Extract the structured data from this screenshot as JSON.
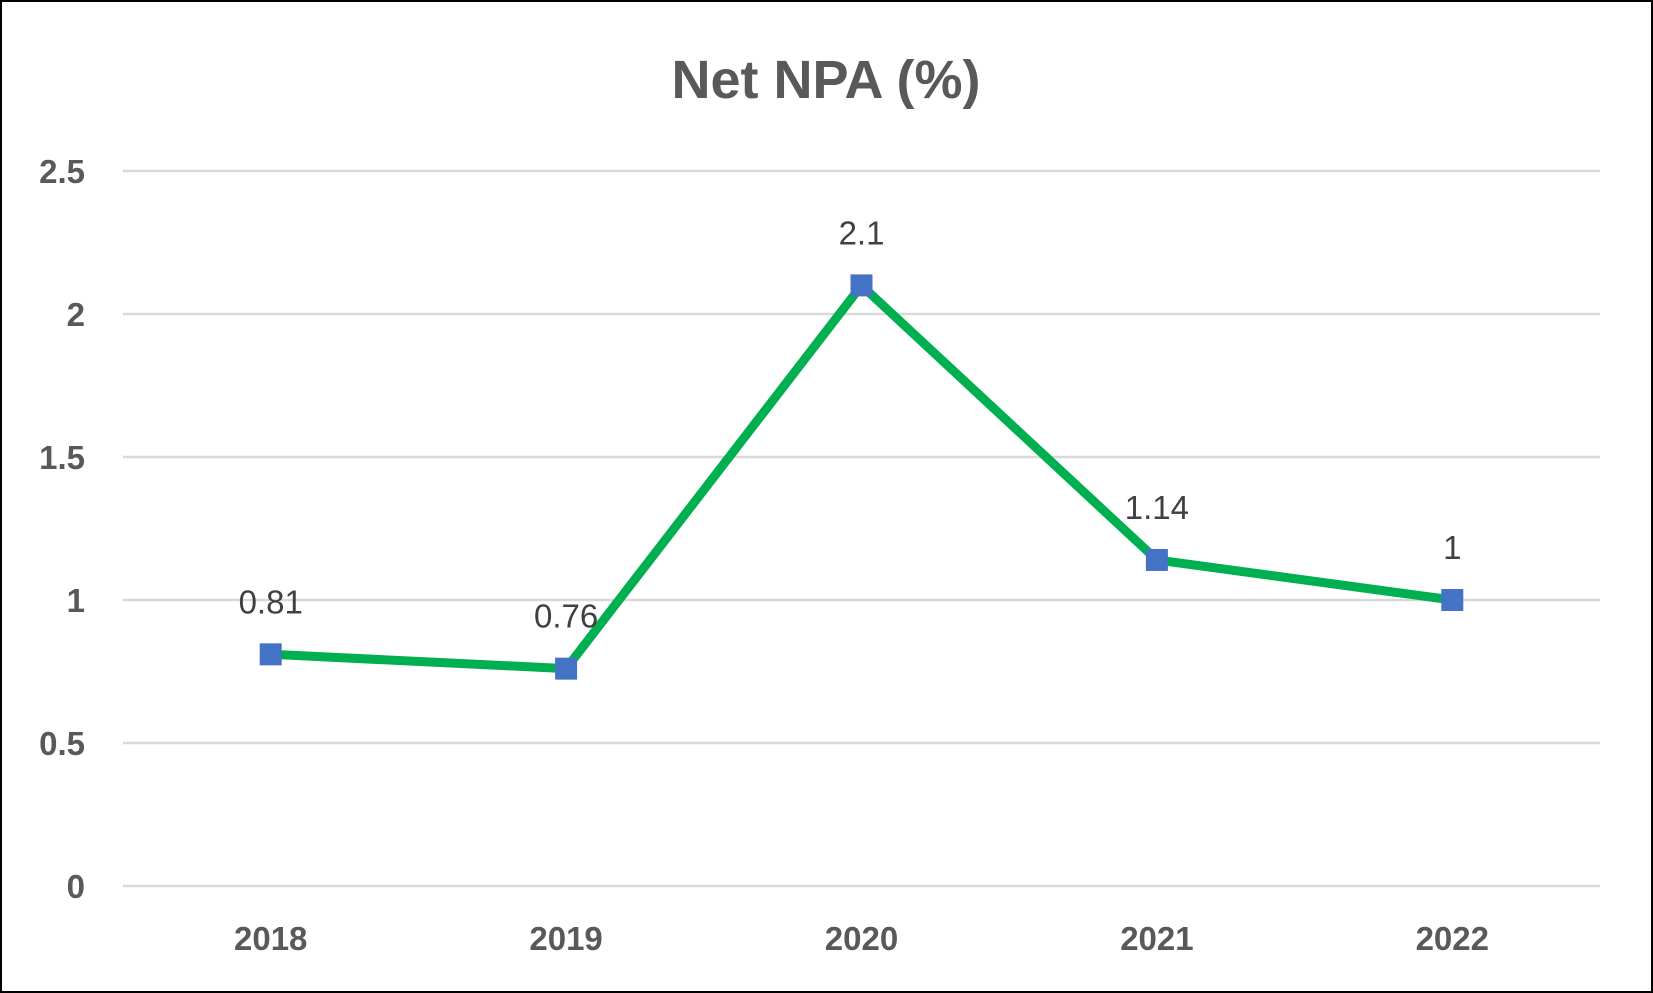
{
  "chart_data": {
    "type": "line",
    "title": "Net NPA (%)",
    "categories": [
      "2018",
      "2019",
      "2020",
      "2021",
      "2022"
    ],
    "series": [
      {
        "values": [
          0.81,
          0.76,
          2.1,
          1.14,
          1
        ],
        "data_labels": [
          "0.81",
          "0.76",
          "2.1",
          "1.14",
          "1"
        ]
      }
    ],
    "y_ticks": [
      "0",
      "0.5",
      "1",
      "1.5",
      "2",
      "2.5"
    ],
    "ylim": [
      0,
      2.5
    ],
    "grid": true,
    "legend": "none",
    "colors": {
      "line": "#00b050",
      "marker": "#4472c4",
      "grid": "#d9d9d9",
      "text": "#595959",
      "label": "#404040"
    }
  }
}
